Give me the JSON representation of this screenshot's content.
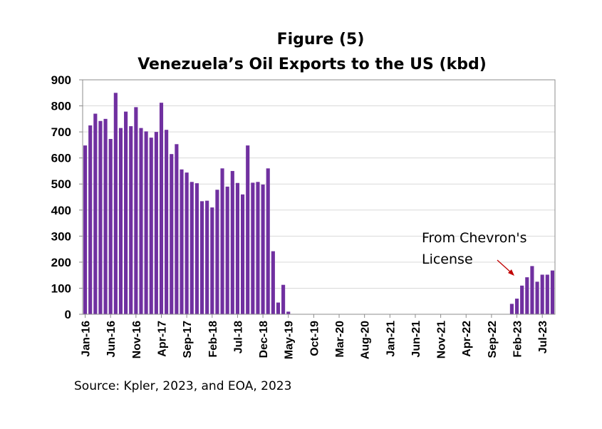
{
  "chart_data": {
    "type": "bar",
    "title": "Figure (5)",
    "subtitle": "Venezuela’s Oil Exports  to the US (kbd)",
    "ylim": [
      0,
      900
    ],
    "yticks": [
      "0",
      "100",
      "200",
      "300",
      "400",
      "500",
      "600",
      "700",
      "800",
      "900"
    ],
    "grid": true,
    "bar_color": "#7030a0",
    "x_tick_labels": [
      "Jan-16",
      "Jun-16",
      "Nov-16",
      "Apr-17",
      "Sep-17",
      "Feb-18",
      "Jul-18",
      "Dec-18",
      "May-19",
      "Oct-19",
      "Mar-20",
      "Aug-20",
      "Jan-21",
      "Jun-21",
      "Nov-21",
      "Apr-22",
      "Sep-22",
      "Feb-23",
      "Jul-23"
    ],
    "values": [
      648,
      725,
      770,
      742,
      750,
      673,
      850,
      715,
      778,
      722,
      795,
      715,
      702,
      678,
      700,
      812,
      708,
      615,
      653,
      556,
      544,
      508,
      503,
      434,
      436,
      410,
      478,
      560,
      490,
      550,
      504,
      460,
      648,
      505,
      508,
      498,
      560,
      242,
      45,
      113,
      10,
      0,
      0,
      0,
      0,
      0,
      0,
      0,
      0,
      0,
      0,
      0,
      0,
      0,
      0,
      0,
      0,
      0,
      0,
      0,
      0,
      0,
      0,
      0,
      0,
      0,
      0,
      0,
      0,
      0,
      0,
      0,
      0,
      0,
      0,
      0,
      0,
      0,
      0,
      0,
      0,
      0,
      0,
      0,
      40,
      60,
      110,
      142,
      185,
      125,
      152,
      152,
      168
    ],
    "annotation": {
      "lines": [
        "From Chevron's",
        "License"
      ],
      "arrow_color": "#c00000"
    },
    "source": "Source: Kpler, 2023, and EOA, 2023"
  }
}
